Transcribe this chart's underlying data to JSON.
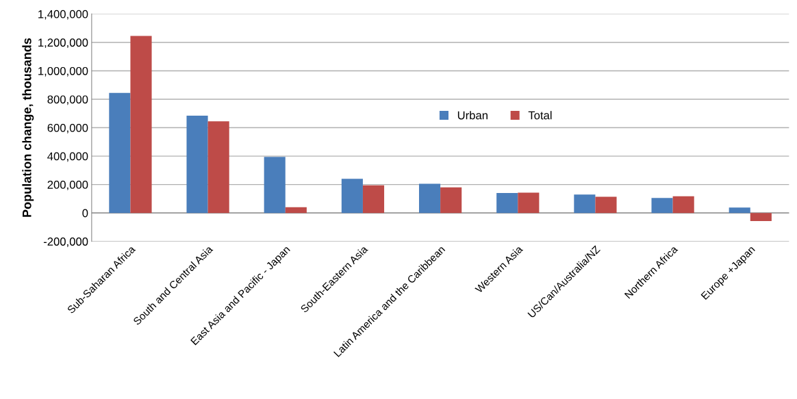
{
  "chart_data": {
    "type": "bar",
    "ylabel": "Population change, thousands",
    "categories": [
      "Sub-Saharan Africa",
      "South and Central Asia",
      "East Asia and Pacific - Japan",
      "South-Eastern Asia",
      "Latin America and the Caribbean",
      "Western Asia",
      "US/Can/Australia/NZ",
      "Northern Africa",
      "Europe +Japan"
    ],
    "series": [
      {
        "name": "Urban",
        "color": "#4a7ebb",
        "values": [
          845000,
          685000,
          395000,
          240000,
          205000,
          140000,
          130000,
          105000,
          38000
        ]
      },
      {
        "name": "Total",
        "color": "#be4b48",
        "values": [
          1245000,
          645000,
          40000,
          195000,
          180000,
          143000,
          114000,
          118000,
          -57000
        ]
      }
    ],
    "ylim": [
      -200000,
      1400000
    ],
    "yticks": [
      {
        "value": -200000,
        "label": "-200,000"
      },
      {
        "value": 0,
        "label": "0"
      },
      {
        "value": 200000,
        "label": "200,000"
      },
      {
        "value": 400000,
        "label": "400,000"
      },
      {
        "value": 600000,
        "label": "600,000"
      },
      {
        "value": 800000,
        "label": "800,000"
      },
      {
        "value": 1000000,
        "label": "1,000,000"
      },
      {
        "value": 1200000,
        "label": "1,200,000"
      },
      {
        "value": 1400000,
        "label": "1,400,000"
      }
    ],
    "grid": "y",
    "legend": "center"
  }
}
